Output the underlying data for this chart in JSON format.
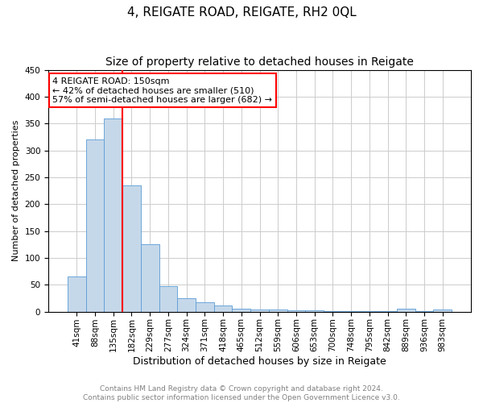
{
  "title": "4, REIGATE ROAD, REIGATE, RH2 0QL",
  "subtitle": "Size of property relative to detached houses in Reigate",
  "xlabel": "Distribution of detached houses by size in Reigate",
  "ylabel": "Number of detached properties",
  "bar_labels": [
    "41sqm",
    "88sqm",
    "135sqm",
    "182sqm",
    "229sqm",
    "277sqm",
    "324sqm",
    "371sqm",
    "418sqm",
    "465sqm",
    "512sqm",
    "559sqm",
    "606sqm",
    "653sqm",
    "700sqm",
    "748sqm",
    "795sqm",
    "842sqm",
    "889sqm",
    "936sqm",
    "983sqm"
  ],
  "bar_values": [
    65,
    320,
    360,
    235,
    125,
    47,
    25,
    18,
    12,
    5,
    4,
    4,
    2,
    3,
    1,
    1,
    1,
    1,
    5,
    1,
    4
  ],
  "bar_color": "#c5d8ea",
  "bar_edge_color": "#5b9bd5",
  "vline_x": 2.5,
  "vline_color": "red",
  "annotation_text": "4 REIGATE ROAD: 150sqm\n← 42% of detached houses are smaller (510)\n57% of semi-detached houses are larger (682) →",
  "annotation_box_color": "white",
  "annotation_box_edge": "red",
  "ylim": [
    0,
    450
  ],
  "yticks": [
    0,
    50,
    100,
    150,
    200,
    250,
    300,
    350,
    400,
    450
  ],
  "grid_color": "#cccccc",
  "footer_line1": "Contains HM Land Registry data © Crown copyright and database right 2024.",
  "footer_line2": "Contains public sector information licensed under the Open Government Licence v3.0.",
  "title_fontsize": 11,
  "xlabel_fontsize": 9,
  "ylabel_fontsize": 8,
  "tick_fontsize": 7.5,
  "footer_fontsize": 6.5,
  "annotation_fontsize": 8
}
